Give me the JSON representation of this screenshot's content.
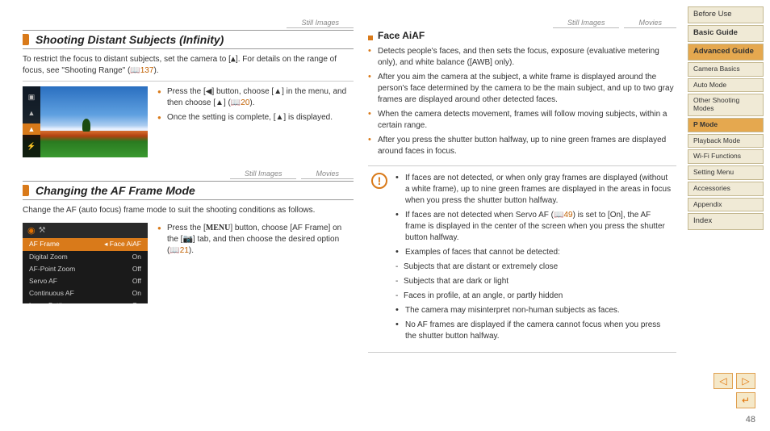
{
  "page_number": "48",
  "sidebar": {
    "items": [
      {
        "label": "Before Use",
        "active": false,
        "sub": false
      },
      {
        "label": "Basic Guide",
        "active": false,
        "sub": false,
        "bold": true
      },
      {
        "label": "Advanced Guide",
        "active": true,
        "sub": false,
        "bold": true
      },
      {
        "label": "Camera Basics",
        "active": false,
        "sub": true
      },
      {
        "label": "Auto Mode",
        "active": false,
        "sub": true
      },
      {
        "label": "Other Shooting Modes",
        "active": false,
        "sub": true
      },
      {
        "label": "P Mode",
        "active": true,
        "sub": true
      },
      {
        "label": "Playback Mode",
        "active": false,
        "sub": true
      },
      {
        "label": "Wi-Fi Functions",
        "active": false,
        "sub": true
      },
      {
        "label": "Setting Menu",
        "active": false,
        "sub": true
      },
      {
        "label": "Accessories",
        "active": false,
        "sub": true
      },
      {
        "label": "Appendix",
        "active": false,
        "sub": true
      },
      {
        "label": "Index",
        "active": false,
        "sub": false
      }
    ]
  },
  "left": {
    "tags1": [
      "Still Images"
    ],
    "section1_title": "Shooting Distant Subjects (Infinity)",
    "section1_intro_a": "To restrict the focus to distant subjects, set the camera to [",
    "section1_intro_b": "]. For details on the range of focus, see \"Shooting Range\" (",
    "section1_intro_link": "📖137",
    "section1_intro_c": ").",
    "section1_bullets": [
      "Press the [◀] button, choose [▲] in the menu, and then choose [▲] (📖20).",
      "Once the setting is complete, [▲] is displayed."
    ],
    "tags2": [
      "Still Images",
      "Movies"
    ],
    "section2_title": "Changing the AF Frame Mode",
    "section2_intro": "Change the AF (auto focus) frame mode to suit the shooting conditions as follows.",
    "section2_bullets": [
      "Press the [MENU] button, choose [AF Frame] on the [📷] tab, and then choose the desired option (📖21)."
    ],
    "menu_rows": [
      {
        "k": "AF Frame",
        "v": "Face AiAF",
        "hl": true
      },
      {
        "k": "Digital Zoom",
        "v": "On",
        "hl": false
      },
      {
        "k": "AF-Point Zoom",
        "v": "Off",
        "hl": false
      },
      {
        "k": "Servo AF",
        "v": "Off",
        "hl": false
      },
      {
        "k": "Continuous AF",
        "v": "On",
        "hl": false
      },
      {
        "k": "Lamp Setting",
        "v": "On",
        "hl": false
      }
    ]
  },
  "right": {
    "tags": [
      "Still Images",
      "Movies"
    ],
    "subtitle": "Face AiAF",
    "bullets": [
      "Detects people's faces, and then sets the focus, exposure (evaluative metering only), and white balance ([AWB] only).",
      "After you aim the camera at the subject, a white frame is displayed around the person's face determined by the camera to be the main subject, and up to two gray frames are displayed around other detected faces.",
      "When the camera detects movement, frames will follow moving subjects, within a certain range.",
      "After you press the shutter button halfway, up to nine green frames are displayed around faces in focus."
    ],
    "warn": [
      {
        "t": "If faces are not detected, or when only gray frames are displayed (without a white frame), up to nine green frames are displayed in the areas in focus when you press the shutter button halfway."
      },
      {
        "t": "If faces are not detected when Servo AF (📖49) is set to [On], the AF frame is displayed in the center of the screen when you press the shutter button halfway."
      },
      {
        "t": "Examples of faces that cannot be detected:"
      },
      {
        "t": "Subjects that are distant or extremely close",
        "sub": true
      },
      {
        "t": "Subjects that are dark or light",
        "sub": true
      },
      {
        "t": "Faces in profile, at an angle, or partly hidden",
        "sub": true
      },
      {
        "t": "The camera may misinterpret non-human subjects as faces."
      },
      {
        "t": "No AF frames are displayed if the camera cannot focus when you press the shutter button halfway."
      }
    ]
  }
}
